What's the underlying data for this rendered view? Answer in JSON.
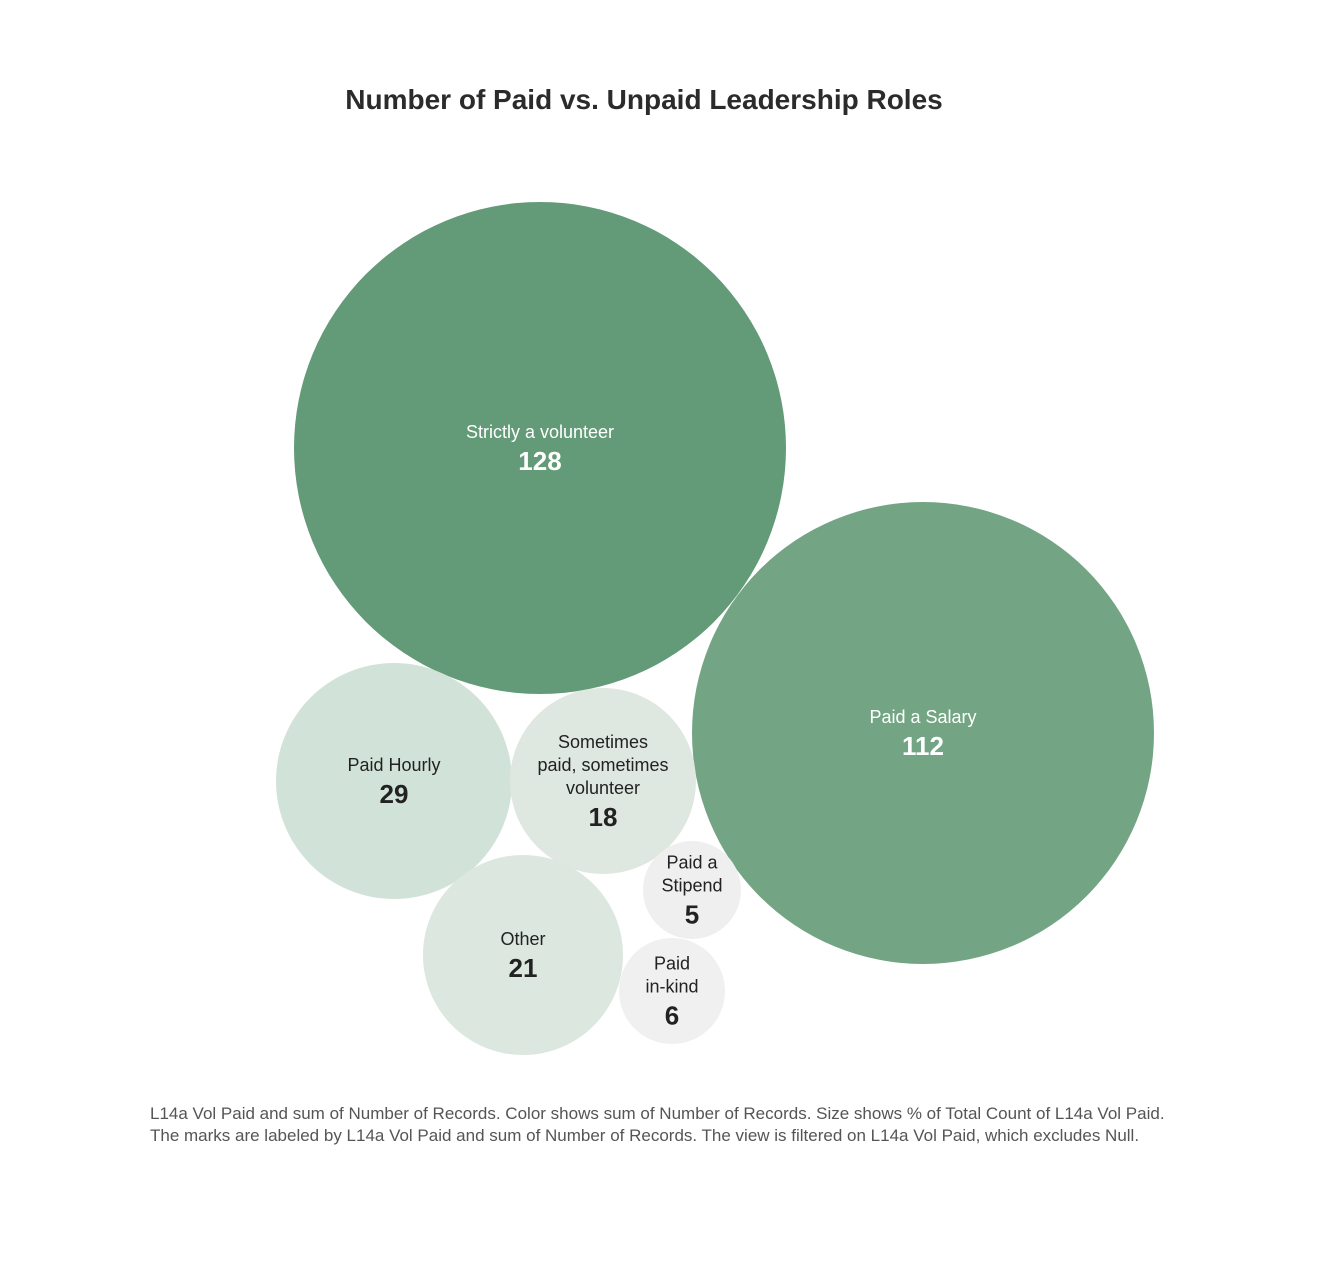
{
  "chart_data": {
    "type": "bubble",
    "title": "Number of Paid vs. Unpaid Leadership Roles",
    "series": [
      {
        "name": "Strictly a volunteer",
        "value": 128,
        "color": "#639a77",
        "text_color": "#ffffff"
      },
      {
        "name": "Paid a Salary",
        "value": 112,
        "color": "#73a584",
        "text_color": "#ffffff"
      },
      {
        "name": "Paid Hourly",
        "value": 29,
        "color": "#d1e3d8",
        "text_color": "#222222"
      },
      {
        "name": "Sometimes paid, sometimes volunteer",
        "value": 18,
        "color": "#dfe7e1",
        "text_color": "#222222"
      },
      {
        "name": "Other",
        "value": 21,
        "color": "#dce7df",
        "text_color": "#222222"
      },
      {
        "name": "Paid a Stipend",
        "value": 5,
        "color": "#efefef",
        "text_color": "#222222"
      },
      {
        "name": "Paid in-kind",
        "value": 6,
        "color": "#f0f0f0",
        "text_color": "#222222"
      }
    ],
    "caption_lines": [
      "L14a Vol Paid and sum of Number of Records.  Color shows sum of Number of Records.  Size shows % of Total Count of L14a Vol Paid.",
      "The marks are labeled by L14a Vol Paid and sum of Number of Records. The view is filtered on L14a Vol Paid, which excludes Null."
    ]
  }
}
